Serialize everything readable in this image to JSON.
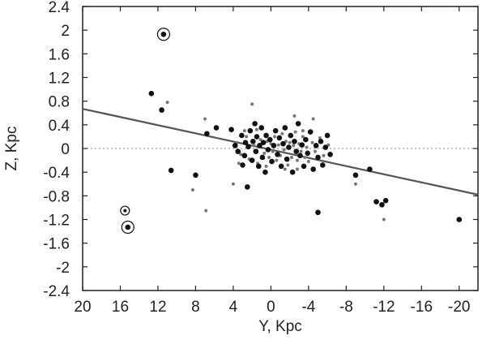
{
  "chart_data": {
    "type": "scatter",
    "title": "",
    "xlabel": "Y, Kpc",
    "ylabel": "Z, Kpc",
    "xlim": [
      20,
      -22
    ],
    "ylim": [
      -2.4,
      2.4
    ],
    "x_reversed": true,
    "grid": false,
    "x_ticks": [
      20,
      16,
      12,
      8,
      4,
      0,
      -4,
      -8,
      -12,
      -16,
      -20
    ],
    "x_tick_labels": [
      "20",
      "16",
      "12",
      "8",
      "4",
      "0",
      "-4",
      "-8",
      "-12",
      "-16",
      "-20"
    ],
    "y_ticks": [
      2.4,
      2.0,
      1.6,
      1.2,
      0.8,
      0.4,
      0.0,
      -0.4,
      -0.8,
      -1.2,
      -1.6,
      -2.0,
      -2.4
    ],
    "y_tick_labels": [
      "2.4",
      "2",
      "1.6",
      "1.2",
      "0.8",
      "0.4",
      "0",
      "-0.4",
      "-0.8",
      "-1.2",
      "-1.6",
      "-2",
      "-2.4"
    ],
    "zero_line": {
      "y": 0,
      "style": "dotted",
      "color": "#888888"
    },
    "fit_line": {
      "x": [
        20,
        -22
      ],
      "y": [
        0.67,
        -0.78
      ],
      "color": "#555555"
    },
    "series": [
      {
        "marker": "large-black",
        "color": "#111111",
        "points": [
          [
            12.7,
            0.93
          ],
          [
            11.6,
            0.65
          ],
          [
            10.6,
            -0.37
          ],
          [
            8.0,
            -0.45
          ],
          [
            6.8,
            0.25
          ],
          [
            5.8,
            0.35
          ],
          [
            4.2,
            0.32
          ],
          [
            3.8,
            0.05
          ],
          [
            3.5,
            -0.05
          ],
          [
            3.1,
            0.22
          ],
          [
            3.0,
            -0.28
          ],
          [
            2.8,
            -0.12
          ],
          [
            2.7,
            0.1
          ],
          [
            2.5,
            -0.65
          ],
          [
            2.4,
            0.03
          ],
          [
            2.2,
            0.3
          ],
          [
            2.0,
            -0.2
          ],
          [
            1.9,
            0.12
          ],
          [
            1.7,
            0.42
          ],
          [
            1.6,
            -0.05
          ],
          [
            1.5,
            0.2
          ],
          [
            1.3,
            -0.3
          ],
          [
            1.2,
            0.05
          ],
          [
            1.0,
            0.35
          ],
          [
            0.9,
            -0.15
          ],
          [
            0.8,
            0.1
          ],
          [
            0.6,
            -0.4
          ],
          [
            0.5,
            0.22
          ],
          [
            0.3,
            -0.02
          ],
          [
            0.1,
            0.15
          ],
          [
            -0.1,
            -0.22
          ],
          [
            -0.3,
            0.05
          ],
          [
            -0.5,
            0.3
          ],
          [
            -0.7,
            -0.1
          ],
          [
            -0.9,
            0.18
          ],
          [
            -1.1,
            -0.3
          ],
          [
            -1.3,
            0.08
          ],
          [
            -1.5,
            0.35
          ],
          [
            -1.7,
            -0.18
          ],
          [
            -1.9,
            0.02
          ],
          [
            -2.1,
            0.22
          ],
          [
            -2.3,
            -0.4
          ],
          [
            -2.5,
            0.12
          ],
          [
            -2.7,
            -0.05
          ],
          [
            -2.9,
            0.42
          ],
          [
            -3.1,
            -0.12
          ],
          [
            -3.3,
            0.06
          ],
          [
            -3.5,
            -0.3
          ],
          [
            -3.7,
            0.15
          ],
          [
            -3.9,
            -0.08
          ],
          [
            -4.2,
            0.28
          ],
          [
            -4.5,
            -0.35
          ],
          [
            -4.8,
            0.05
          ],
          [
            -5.0,
            -0.15
          ],
          [
            -5.3,
            0.12
          ],
          [
            -5.5,
            -0.28
          ],
          [
            -5.8,
            0.02
          ],
          [
            -6.0,
            0.22
          ],
          [
            -6.3,
            -0.1
          ],
          [
            -5.0,
            -1.08
          ],
          [
            -9.0,
            -0.45
          ],
          [
            -10.5,
            -0.35
          ],
          [
            -11.2,
            -0.9
          ],
          [
            -11.8,
            -0.95
          ],
          [
            -12.2,
            -0.88
          ],
          [
            -20.0,
            -1.2
          ]
        ]
      },
      {
        "marker": "small-gray",
        "color": "#777777",
        "points": [
          [
            11.0,
            0.78
          ],
          [
            7.0,
            0.5
          ],
          [
            8.3,
            -0.7
          ],
          [
            6.9,
            -1.05
          ],
          [
            4.0,
            -0.6
          ],
          [
            2.0,
            0.75
          ],
          [
            -2.5,
            0.55
          ],
          [
            -4.5,
            0.5
          ],
          [
            -9.0,
            -0.6
          ],
          [
            -12.0,
            -1.2
          ],
          [
            3.6,
            0.1
          ],
          [
            3.2,
            -0.1
          ],
          [
            2.6,
            0.2
          ],
          [
            2.3,
            -0.18
          ],
          [
            1.8,
            0.05
          ],
          [
            1.4,
            -0.25
          ],
          [
            1.1,
            0.15
          ],
          [
            0.7,
            -0.08
          ],
          [
            0.4,
            0.12
          ],
          [
            0.2,
            -0.15
          ],
          [
            0.0,
            0.08
          ],
          [
            -0.2,
            -0.05
          ],
          [
            -0.4,
            0.2
          ],
          [
            -0.6,
            -0.2
          ],
          [
            -0.8,
            0.06
          ],
          [
            -1.0,
            -0.12
          ],
          [
            -1.2,
            0.25
          ],
          [
            -1.4,
            -0.02
          ],
          [
            -1.6,
            0.12
          ],
          [
            -1.8,
            -0.28
          ],
          [
            -2.0,
            0.1
          ],
          [
            -2.2,
            -0.15
          ],
          [
            -2.4,
            0.05
          ],
          [
            -2.6,
            0.28
          ],
          [
            -2.8,
            -0.2
          ],
          [
            -3.0,
            0.08
          ],
          [
            -3.2,
            -0.05
          ],
          [
            -3.4,
            0.2
          ],
          [
            -3.6,
            -0.15
          ],
          [
            -3.8,
            0.02
          ],
          [
            -4.0,
            -0.22
          ],
          [
            -4.4,
            0.1
          ],
          [
            -4.7,
            -0.05
          ],
          [
            -5.2,
            0.18
          ],
          [
            -5.6,
            -0.12
          ],
          [
            -6.1,
            0.06
          ],
          [
            0.5,
            -0.3
          ],
          [
            -0.5,
            0.3
          ],
          [
            1.5,
            0.32
          ],
          [
            -1.5,
            -0.35
          ],
          [
            2.8,
            0.3
          ],
          [
            -2.8,
            -0.35
          ],
          [
            3.4,
            -0.25
          ],
          [
            -3.4,
            0.3
          ]
        ]
      }
    ],
    "circled_points": [
      {
        "x": 11.4,
        "y": 1.93,
        "marker": "large-black"
      },
      {
        "x": 15.5,
        "y": -1.05,
        "marker": "small-black"
      },
      {
        "x": 15.2,
        "y": -1.33,
        "marker": "large-black"
      }
    ]
  }
}
